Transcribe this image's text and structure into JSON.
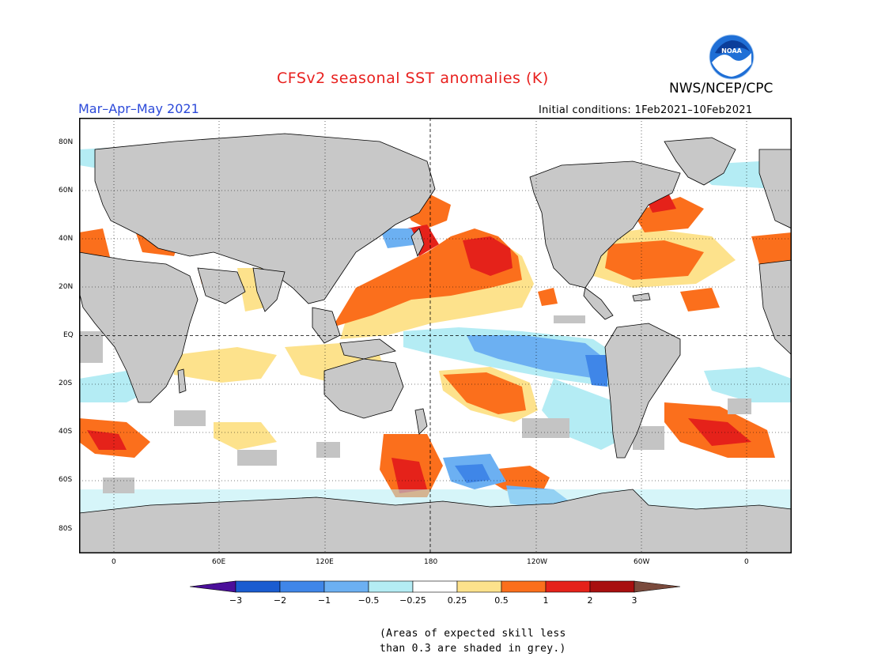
{
  "title": "CFSv2 seasonal SST anomalies (K)",
  "season": "Mar–Apr–May 2021",
  "initial_conditions": "Initial conditions: 1Feb2021–10Feb2021",
  "organization": "NWS/NCEP/CPC",
  "logo_text": "NOAA",
  "lat_labels": [
    "80N",
    "60N",
    "40N",
    "20N",
    "EQ",
    "20S",
    "40S",
    "60S",
    "80S"
  ],
  "lon_labels": [
    "0",
    "60E",
    "120E",
    "180",
    "120W",
    "60W",
    "0"
  ],
  "colorbar": {
    "tick_labels": [
      "−3",
      "−2",
      "−1",
      "−0.5",
      "−0.25",
      "0.25",
      "0.5",
      "1",
      "2",
      "3"
    ],
    "colors": [
      "#4b0f9a",
      "#1a5cd0",
      "#3f86e8",
      "#6cb0f2",
      "#b4ecf4",
      "#ffffff",
      "#fde28c",
      "#fb6f1c",
      "#e5221a",
      "#a80f0f",
      "#7a4a3c"
    ]
  },
  "footnote_line1": "(Areas of expected skill less",
  "footnote_line2": "than 0.3 are shaded in grey.)",
  "legend_colors": {
    "land": "#c8c8c8",
    "low_skill": "#c4c4c4"
  }
}
